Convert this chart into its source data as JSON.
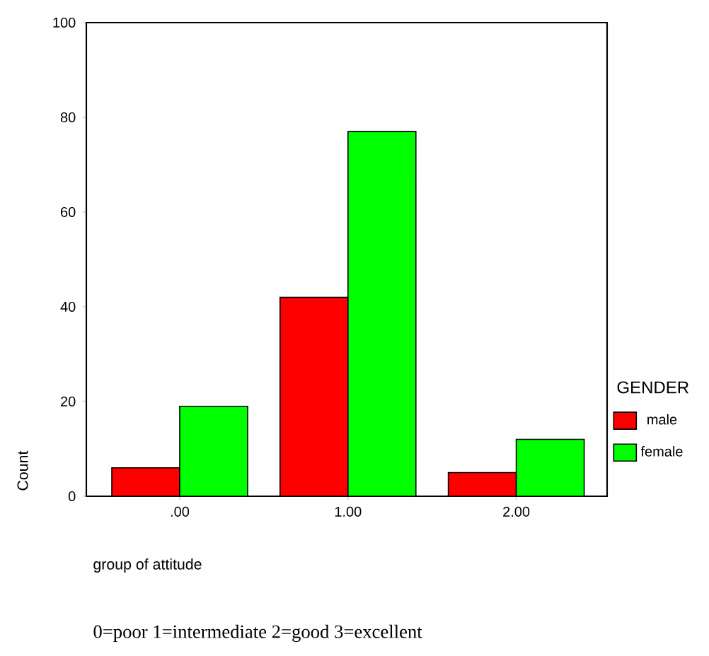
{
  "chart_data": {
    "type": "bar",
    "xlabel": "group of attitude",
    "ylabel": "Count",
    "legend_title": "GENDER",
    "categories": [
      ".00",
      "1.00",
      "2.00"
    ],
    "series": [
      {
        "name": "male",
        "color": "#ff0000",
        "values": [
          6,
          42,
          5
        ]
      },
      {
        "name": "female",
        "color": "#00ff00",
        "values": [
          19,
          77,
          12
        ]
      }
    ],
    "ylim": [
      0,
      100
    ],
    "yticks": [
      0,
      20,
      40,
      60,
      80,
      100
    ],
    "legend": "right",
    "annotations": [
      "0=poor 1=intermediate 2=good 3=excellent"
    ]
  }
}
